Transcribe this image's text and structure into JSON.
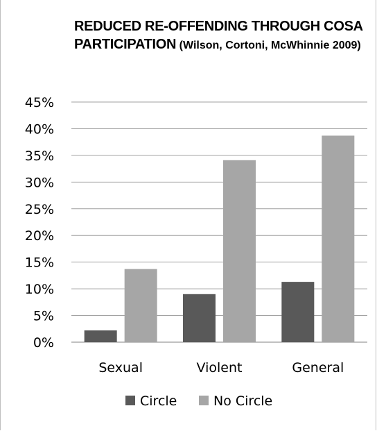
{
  "chart_data": {
    "type": "bar",
    "title": "REDUCED RE-OFFENDING THROUGH COSA PARTICIPATION",
    "subtitle": "(Wilson, Cortoni, McWhinnie 2009)",
    "categories": [
      "Sexual",
      "Violent",
      "General"
    ],
    "series": [
      {
        "name": "Circle",
        "values": [
          2.2,
          9.0,
          11.3
        ],
        "color": "#595959"
      },
      {
        "name": "No Circle",
        "values": [
          13.7,
          34.1,
          38.7
        ],
        "color": "#a6a6a6"
      }
    ],
    "yticks": [
      "0%",
      "5%",
      "10%",
      "15%",
      "20%",
      "25%",
      "30%",
      "35%",
      "40%",
      "45%"
    ],
    "ylim": [
      0,
      45
    ],
    "grid": true,
    "legend_position": "bottom"
  }
}
